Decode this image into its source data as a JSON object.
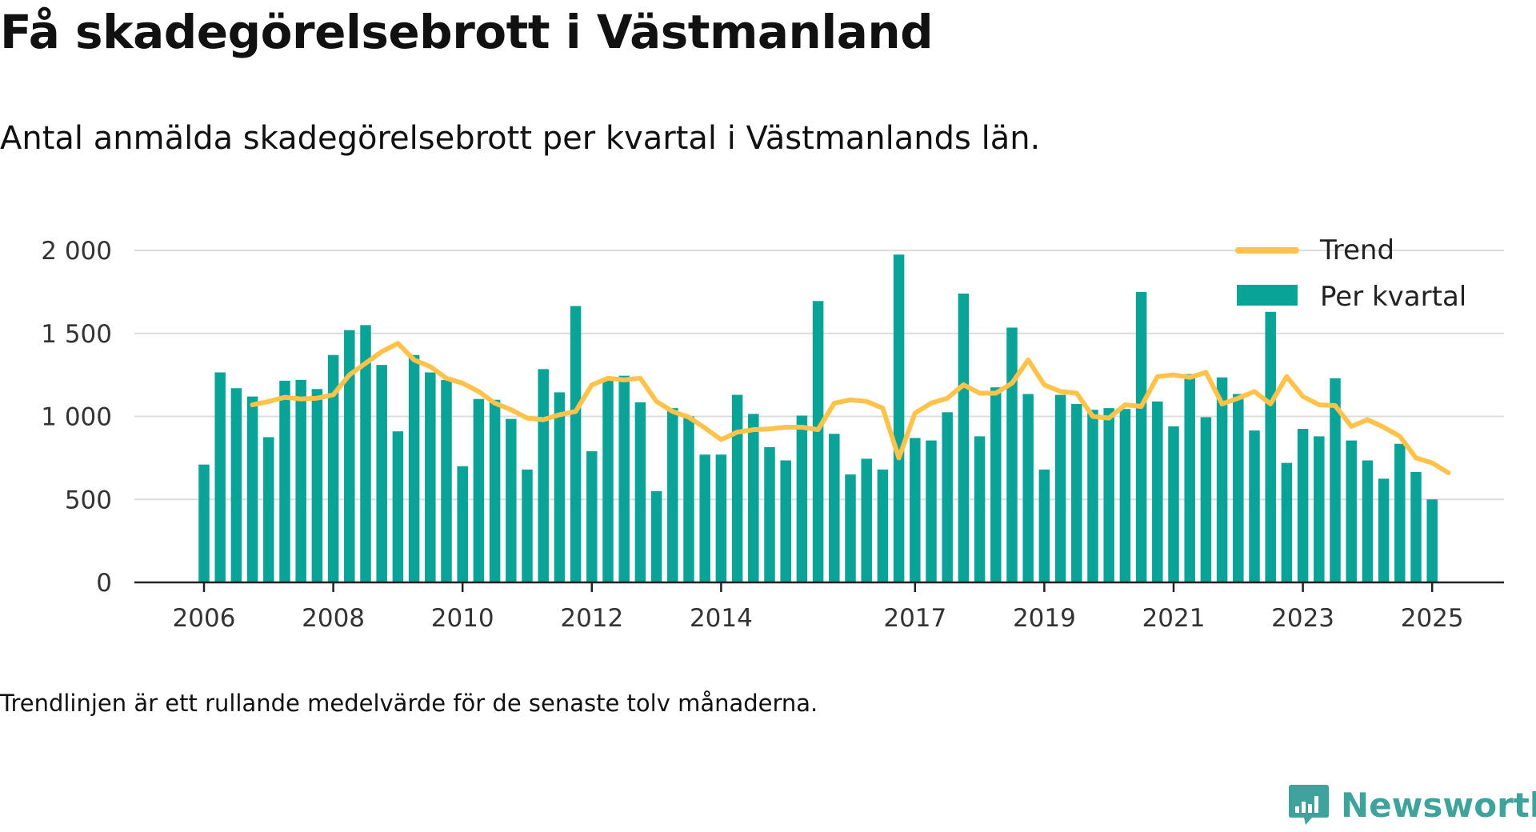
{
  "title": "Få skadegörelsebrott i Västmanland",
  "subtitle": "Antal anmälda skadegörelsebrott per kvartal i Västmanlands län.",
  "footnote": "Trendlinjen är ett rullande medelvärde för de senaste tolv månaderna.",
  "brand": "Newsworthy",
  "colors": {
    "bar": "#0aa398",
    "trend": "#ffc34b",
    "grid": "#dcdcdc",
    "axis": "#222222",
    "brand": "#3fa39b"
  },
  "chart_data": {
    "type": "bar",
    "x_start": "2006 Q1",
    "x_end": "2025 Q1",
    "xticks": [
      "2006",
      "2008",
      "2010",
      "2012",
      "2014",
      "2017",
      "2019",
      "2021",
      "2023",
      "2025"
    ],
    "yticks": [
      "0",
      "500",
      "1 000",
      "1 500",
      "2 000"
    ],
    "ylim": [
      0,
      2000
    ],
    "grid": "horizontal",
    "legend_position": "top-right",
    "series": [
      {
        "name": "Per kvartal",
        "type": "bar",
        "values": [
          710,
          1265,
          1170,
          1120,
          875,
          1215,
          1220,
          1165,
          1370,
          1520,
          1550,
          1310,
          910,
          1370,
          1265,
          1220,
          700,
          1105,
          1100,
          985,
          680,
          1285,
          1145,
          1665,
          790,
          1220,
          1245,
          1085,
          550,
          1050,
          1000,
          770,
          770,
          1130,
          1015,
          815,
          735,
          1005,
          1695,
          895,
          650,
          745,
          680,
          1975,
          870,
          855,
          1025,
          1740,
          880,
          1175,
          1535,
          1135,
          680,
          1130,
          1075,
          1040,
          1050,
          1045,
          1750,
          1090,
          940,
          1255,
          995,
          1235,
          1135,
          915,
          1630,
          720,
          925,
          880,
          1230,
          855,
          735,
          625,
          835,
          665,
          500
        ]
      },
      {
        "name": "Trend",
        "type": "line",
        "values": [
          null,
          null,
          null,
          1070,
          1090,
          1115,
          1105,
          1110,
          1130,
          1250,
          1320,
          1390,
          1440,
          1340,
          1300,
          1230,
          1200,
          1150,
          1080,
          1040,
          990,
          980,
          1010,
          1030,
          1190,
          1230,
          1220,
          1230,
          1090,
          1030,
          995,
          930,
          860,
          905,
          920,
          925,
          935,
          935,
          920,
          1080,
          1100,
          1090,
          1050,
          750,
          1020,
          1080,
          1110,
          1190,
          1140,
          1140,
          1200,
          1340,
          1190,
          1150,
          1140,
          1000,
          990,
          1070,
          1060,
          1240,
          1250,
          1235,
          1265,
          1075,
          1110,
          1150,
          1075,
          1240,
          1120,
          1070,
          1065,
          940,
          980,
          935,
          880,
          750,
          720,
          660
        ]
      }
    ]
  }
}
